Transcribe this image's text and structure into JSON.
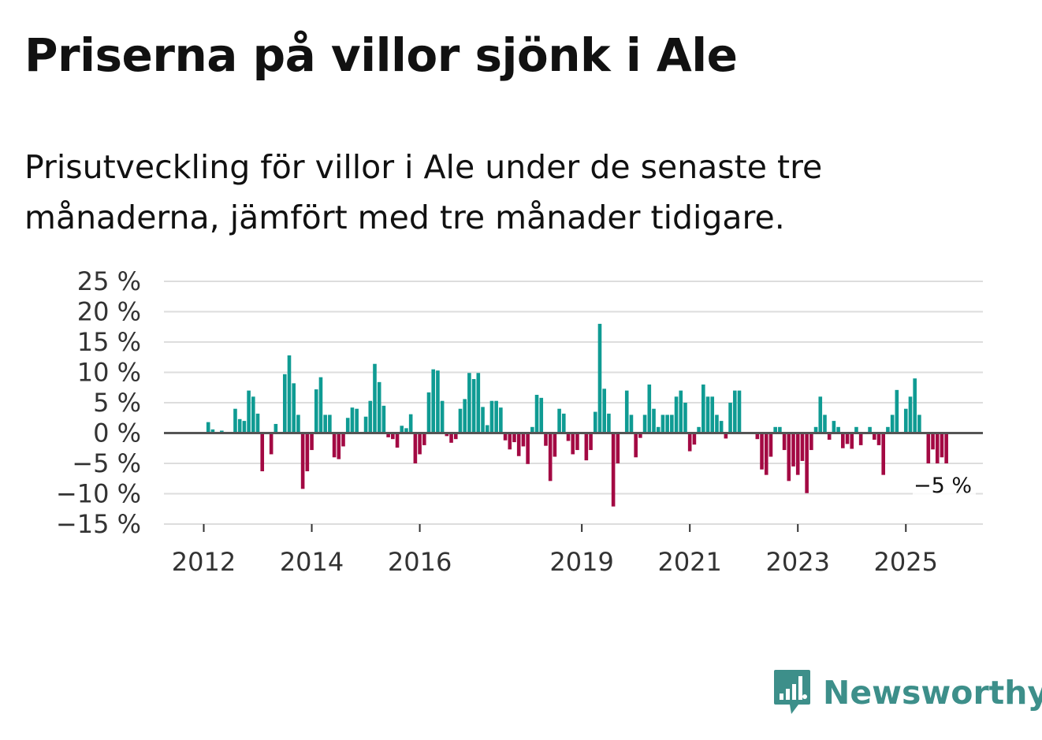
{
  "header": {
    "title": "Priserna på villor sjönk i Ale",
    "subtitle": "Prisutveckling för villor i Ale under de senaste tre månaderna, jämfört med tre månader tidigare."
  },
  "brand": {
    "name": "Newsworthy",
    "icon": "newsworthy-logo-icon"
  },
  "colors": {
    "positive": "#0f9b93",
    "negative": "#a30943",
    "zero_line": "#555555",
    "grid": "#dddddd"
  },
  "chart_data": {
    "type": "bar",
    "title": "Priserna på villor sjönk i Ale",
    "xlabel": "",
    "ylabel": "",
    "ylim": [
      -15,
      25
    ],
    "y_ticks": [
      25,
      20,
      15,
      10,
      5,
      0,
      -5,
      -10,
      -15
    ],
    "y_tick_labels": [
      "25 %",
      "20 %",
      "15 %",
      "10 %",
      "5 %",
      "0 %",
      "−5 %",
      "−10 %",
      "−15 %"
    ],
    "x_tick_labels": [
      "2012",
      "2014",
      "2016",
      "2019",
      "2021",
      "2023",
      "2025"
    ],
    "x_tick_months": [
      0,
      24,
      48,
      84,
      108,
      132,
      156
    ],
    "x_start": "2012-01",
    "grid": true,
    "annotation": {
      "text": "−5 %",
      "value": -5
    },
    "series": [
      {
        "name": "Prisutveckling",
        "unit": "%",
        "values": [
          null,
          1.8,
          0.6,
          0,
          0.4,
          0,
          0,
          4,
          2.3,
          2,
          7,
          6,
          3.2,
          -6.3,
          0,
          -3.5,
          1.5,
          0,
          9.7,
          12.8,
          8.2,
          3,
          -9.2,
          -6.3,
          -2.8,
          7.2,
          9.2,
          3,
          3,
          -4,
          -4.3,
          -2.2,
          2.5,
          4.2,
          4,
          0,
          2.7,
          5.3,
          11.4,
          8.4,
          4.5,
          -0.7,
          -1,
          -2.4,
          1.2,
          0.8,
          3.1,
          -5,
          -3.5,
          -2,
          6.7,
          10.5,
          10.3,
          5.3,
          -0.5,
          -1.6,
          -1,
          4,
          5.6,
          9.9,
          8.9,
          9.9,
          4.3,
          1.3,
          5.3,
          5.3,
          4.2,
          -1.2,
          -2.7,
          -1.5,
          -3.8,
          -2.2,
          -5.1,
          1,
          6.3,
          5.8,
          -2.1,
          -7.9,
          -3.9,
          4,
          3.2,
          -1.3,
          -3.5,
          -2.8,
          0,
          -4.5,
          -2.8,
          3.5,
          18,
          7.3,
          3.2,
          -12.1,
          -5,
          0,
          7,
          3,
          -4,
          -0.8,
          3,
          8,
          4,
          1,
          3,
          3,
          3,
          6,
          7,
          5,
          -3,
          -1.9,
          1,
          8,
          6,
          6,
          3,
          2,
          -0.9,
          5,
          7,
          7,
          0,
          0,
          0,
          -1,
          -6,
          -6.9,
          -3.9,
          1,
          1,
          -2.8,
          -7.9,
          -5.5,
          -6.9,
          -4.6,
          -9.9,
          -2.8,
          1,
          6,
          3,
          -1.1,
          2,
          1,
          -2.5,
          -1.8,
          -2.6,
          1,
          -2,
          0,
          1,
          -1.1,
          -2,
          -6.9,
          1,
          3,
          7.1,
          0,
          4,
          6,
          9,
          3,
          0,
          -5,
          -2.7,
          -5,
          -4,
          -5
        ]
      }
    ]
  }
}
